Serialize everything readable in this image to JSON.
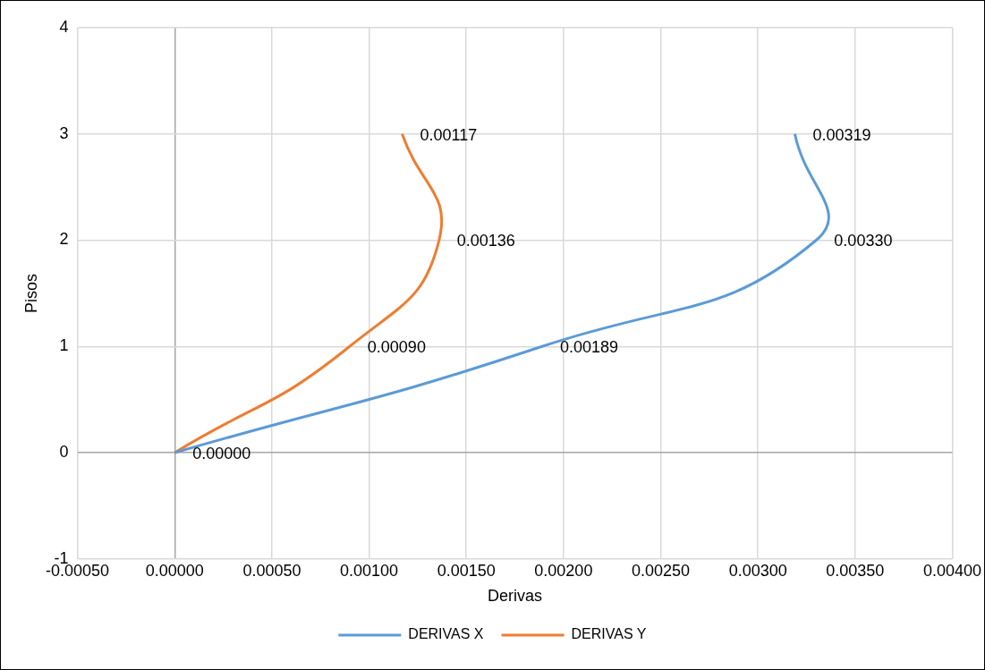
{
  "chart_data": {
    "type": "line",
    "xlabel": "Derivas",
    "ylabel": "Pisos",
    "series": [
      {
        "name": "DERIVAS X",
        "color": "#5b9bd5",
        "x": [
          0,
          0.00189,
          0.0033,
          0.00319
        ],
        "values": [
          0,
          1,
          2,
          3
        ]
      },
      {
        "name": "DERIVAS Y",
        "color": "#ed7d31",
        "x": [
          0,
          0.0009,
          0.00136,
          0.00117
        ],
        "values": [
          0,
          1,
          2,
          3
        ]
      }
    ],
    "annotations": [
      {
        "text": "0.00000",
        "x": 0,
        "y": 0
      },
      {
        "text": "0.00189",
        "x": 0.00189,
        "y": 1
      },
      {
        "text": "0.00330",
        "x": 0.0033,
        "y": 2
      },
      {
        "text": "0.00319",
        "x": 0.00319,
        "y": 3
      },
      {
        "text": "0.00090",
        "x": 0.0009,
        "y": 1
      },
      {
        "text": "0.00136",
        "x": 0.00136,
        "y": 2
      },
      {
        "text": "0.00117",
        "x": 0.00117,
        "y": 3
      }
    ],
    "xlim": [
      -0.0005,
      0.004
    ],
    "xticks": [
      {
        "value": -0.0005,
        "label": "-0.00050"
      },
      {
        "value": 0,
        "label": "0.00000"
      },
      {
        "value": 0.0005,
        "label": "0.00050"
      },
      {
        "value": 0.001,
        "label": "0.00100"
      },
      {
        "value": 0.0015,
        "label": "0.00150"
      },
      {
        "value": 0.002,
        "label": "0.00200"
      },
      {
        "value": 0.0025,
        "label": "0.00250"
      },
      {
        "value": 0.003,
        "label": "0.00300"
      },
      {
        "value": 0.0035,
        "label": "0.00350"
      },
      {
        "value": 0.004,
        "label": "0.00400"
      }
    ],
    "ylim": [
      -1,
      4
    ],
    "yticks": [
      -1,
      0,
      1,
      2,
      3,
      4
    ],
    "grid": true,
    "legend": "bottom",
    "marker": "none",
    "line_style": "solid"
  }
}
